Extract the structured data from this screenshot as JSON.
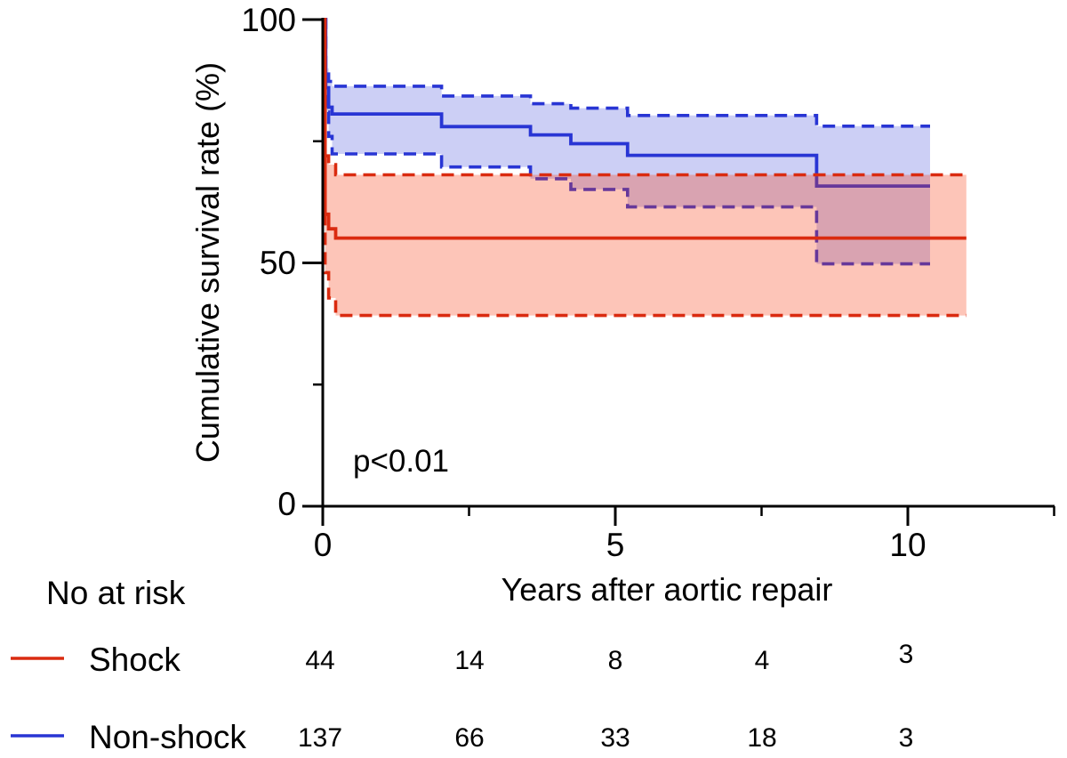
{
  "chart_data": {
    "type": "line",
    "subtype": "kaplan-meier-survival-with-ci",
    "title": "",
    "xlabel": "Years after aortic repair",
    "ylabel": "Cumulative survival rate (%)",
    "xlim": [
      0,
      12.5
    ],
    "ylim": [
      0,
      100
    ],
    "grid": false,
    "annotation": {
      "p_value": "p<0.01"
    },
    "x_axis": {
      "major_ticks": [
        0,
        5,
        10
      ],
      "minor_ticks": [
        2.5,
        7.5,
        12.5
      ],
      "tick_labels": [
        "0",
        "5",
        "10"
      ]
    },
    "y_axis": {
      "major_ticks": [
        100,
        50,
        0
      ],
      "minor_ticks": [
        75,
        25
      ],
      "tick_labels": [
        "100",
        "50",
        "0"
      ]
    },
    "series": [
      {
        "id": "shock",
        "name": "Shock",
        "line_color": "#da2b10",
        "fill_color": "rgba(248,62,20,0.30)",
        "draw_order": 2,
        "end_time": 11.0,
        "survival_steps": [
          [
            0,
            100
          ],
          [
            0.04,
            60
          ],
          [
            0.1,
            57
          ],
          [
            0.22,
            55.1
          ]
        ],
        "ci_upper_steps": [
          [
            0,
            100
          ],
          [
            0.04,
            72
          ],
          [
            0.1,
            70.2
          ],
          [
            0.22,
            68.1
          ]
        ],
        "ci_lower_steps": [
          [
            0,
            100
          ],
          [
            0.04,
            48
          ],
          [
            0.1,
            42.8
          ],
          [
            0.22,
            39.2
          ]
        ]
      },
      {
        "id": "non-shock",
        "name": "Non-shock",
        "line_color": "#2835d4",
        "fill_color": "rgba(40,53,212,0.24)",
        "draw_order": 1,
        "end_time": 10.38,
        "survival_steps": [
          [
            0,
            100
          ],
          [
            0.05,
            86
          ],
          [
            0.1,
            82
          ],
          [
            0.16,
            80.6
          ],
          [
            2.03,
            78.0
          ],
          [
            3.55,
            76.3
          ],
          [
            4.24,
            74.5
          ],
          [
            5.21,
            72.1
          ],
          [
            8.44,
            65.8
          ]
        ],
        "ci_upper_steps": [
          [
            0,
            100
          ],
          [
            0.05,
            90
          ],
          [
            0.1,
            87.3
          ],
          [
            0.16,
            86.3
          ],
          [
            2.03,
            84.3
          ],
          [
            3.55,
            82.7
          ],
          [
            4.24,
            81.8
          ],
          [
            5.21,
            80.3
          ],
          [
            8.44,
            78.1
          ]
        ],
        "ci_lower_steps": [
          [
            0,
            100
          ],
          [
            0.05,
            81
          ],
          [
            0.1,
            76
          ],
          [
            0.16,
            72.4
          ],
          [
            2.03,
            69.7
          ],
          [
            3.55,
            67.3
          ],
          [
            4.24,
            65.1
          ],
          [
            5.21,
            61.5
          ],
          [
            8.44,
            49.8
          ]
        ]
      }
    ],
    "risk_table": {
      "header": "No at risk",
      "times": [
        0,
        2.5,
        5,
        7.5,
        10
      ],
      "rows": [
        {
          "label": "Shock",
          "counts": [
            "44",
            "14",
            "8",
            "4",
            "3"
          ]
        },
        {
          "label": "Non-shock",
          "counts": [
            "137",
            "66",
            "33",
            "18",
            "3"
          ]
        }
      ]
    }
  }
}
